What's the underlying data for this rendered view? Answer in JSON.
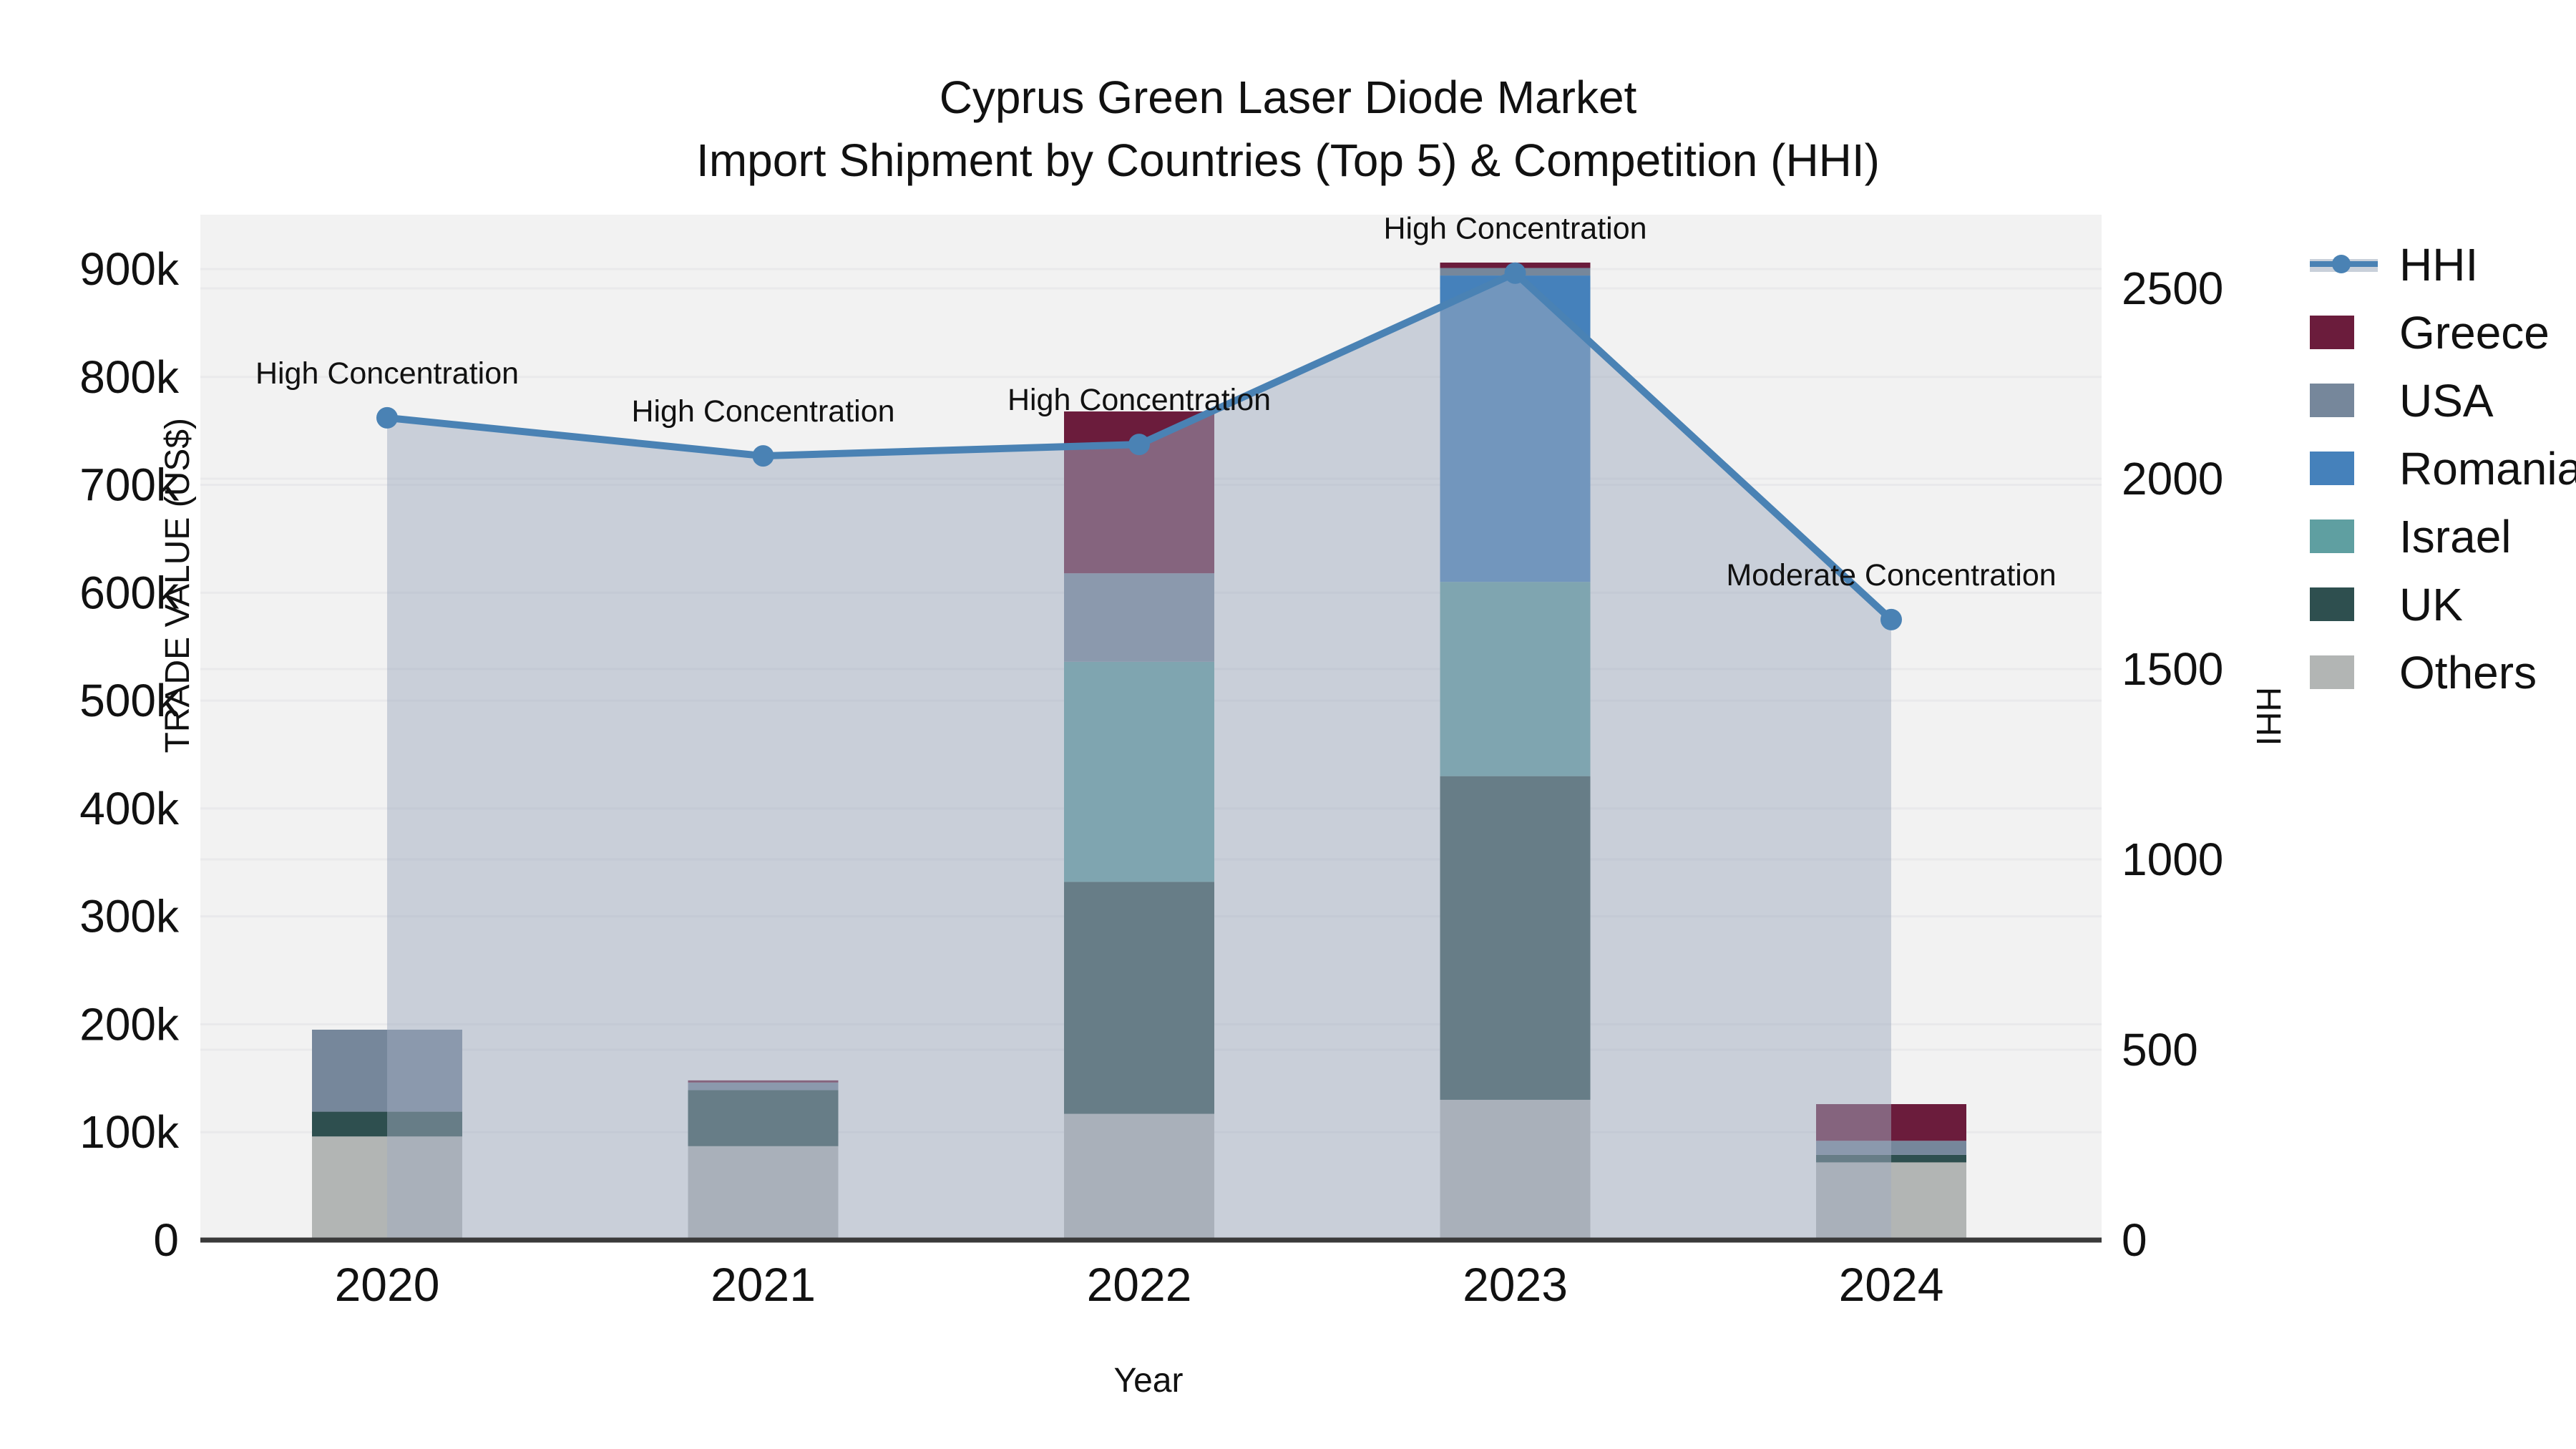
{
  "title": {
    "line1": "Cyprus Green Laser Diode Market",
    "line2": "Import Shipment by Countries (Top 5) & Competition (HHI)"
  },
  "axes": {
    "x_title": "Year",
    "y_left_title": "TRADE VALUE (US$)",
    "y_right_title": "HHI",
    "x_tick_labels": [
      "2020",
      "2021",
      "2022",
      "2023",
      "2024"
    ],
    "y_left_tick_labels": [
      "0",
      "100k",
      "200k",
      "300k",
      "400k",
      "500k",
      "600k",
      "700k",
      "800k",
      "900k"
    ],
    "y_right_tick_labels": [
      "0",
      "500",
      "1000",
      "1500",
      "2000",
      "2500"
    ]
  },
  "legend": {
    "items": [
      {
        "label": "HHI",
        "type": "line",
        "color": "#4a82b4",
        "band_color": "#c9d0da"
      },
      {
        "label": "Greece",
        "type": "box",
        "color": "#6b1c3c"
      },
      {
        "label": "USA",
        "type": "box",
        "color": "#76879b"
      },
      {
        "label": "Romania",
        "type": "box",
        "color": "#4581bb"
      },
      {
        "label": "Israel",
        "type": "box",
        "color": "#5f9fa1"
      },
      {
        "label": "UK",
        "type": "box",
        "color": "#2e4f4f"
      },
      {
        "label": "Others",
        "type": "box",
        "color": "#b2b5b4"
      }
    ]
  },
  "chart_data": {
    "type": "bar",
    "stacked": true,
    "title": "Cyprus Green Laser Diode Market — Import Shipment by Countries (Top 5) & Competition (HHI)",
    "xlabel": "Year",
    "ylabel_left": "TRADE VALUE (US$)",
    "ylabel_right": "HHI",
    "categories": [
      "2020",
      "2021",
      "2022",
      "2023",
      "2024"
    ],
    "series": [
      {
        "name": "Others",
        "color": "#b2b5b4",
        "values_usd_k": [
          96,
          87,
          117,
          130,
          72
        ]
      },
      {
        "name": "UK",
        "color": "#2e4f4f",
        "values_usd_k": [
          23,
          52,
          215,
          300,
          7
        ]
      },
      {
        "name": "Israel",
        "color": "#5f9fa1",
        "values_usd_k": [
          0,
          0,
          204,
          180,
          0
        ]
      },
      {
        "name": "Romania",
        "color": "#4581bb",
        "values_usd_k": [
          0,
          0,
          0,
          284,
          0
        ]
      },
      {
        "name": "USA",
        "color": "#76879b",
        "values_usd_k": [
          76,
          7,
          82,
          7,
          13
        ]
      },
      {
        "name": "Greece",
        "color": "#6b1c3c",
        "values_usd_k": [
          0,
          2,
          150,
          5,
          34
        ]
      }
    ],
    "bar_totals_usd_k": [
      195,
      148,
      768,
      906,
      126
    ],
    "line_series": {
      "name": "HHI",
      "color": "#4a82b4",
      "values": [
        2160,
        2060,
        2090,
        2540,
        1630
      ],
      "area_fill": "#a0abbf",
      "area_opacity": 0.5
    },
    "annotations": [
      "High Concentration",
      "High Concentration",
      "High Concentration",
      "High Concentration",
      "Moderate Concentration"
    ],
    "y_left_axis": {
      "min": 0,
      "max": 900000,
      "tick_step": 100000,
      "unit": "US$"
    },
    "y_right_axis": {
      "min": 0,
      "max": 2500,
      "tick_step": 500
    },
    "grid": true,
    "legend_position": "right",
    "plot_bg": "#f2f2f2",
    "grid_color": "#e9e9eb",
    "axis_line_color": "#3a3a3a",
    "text_color": "#111111"
  }
}
